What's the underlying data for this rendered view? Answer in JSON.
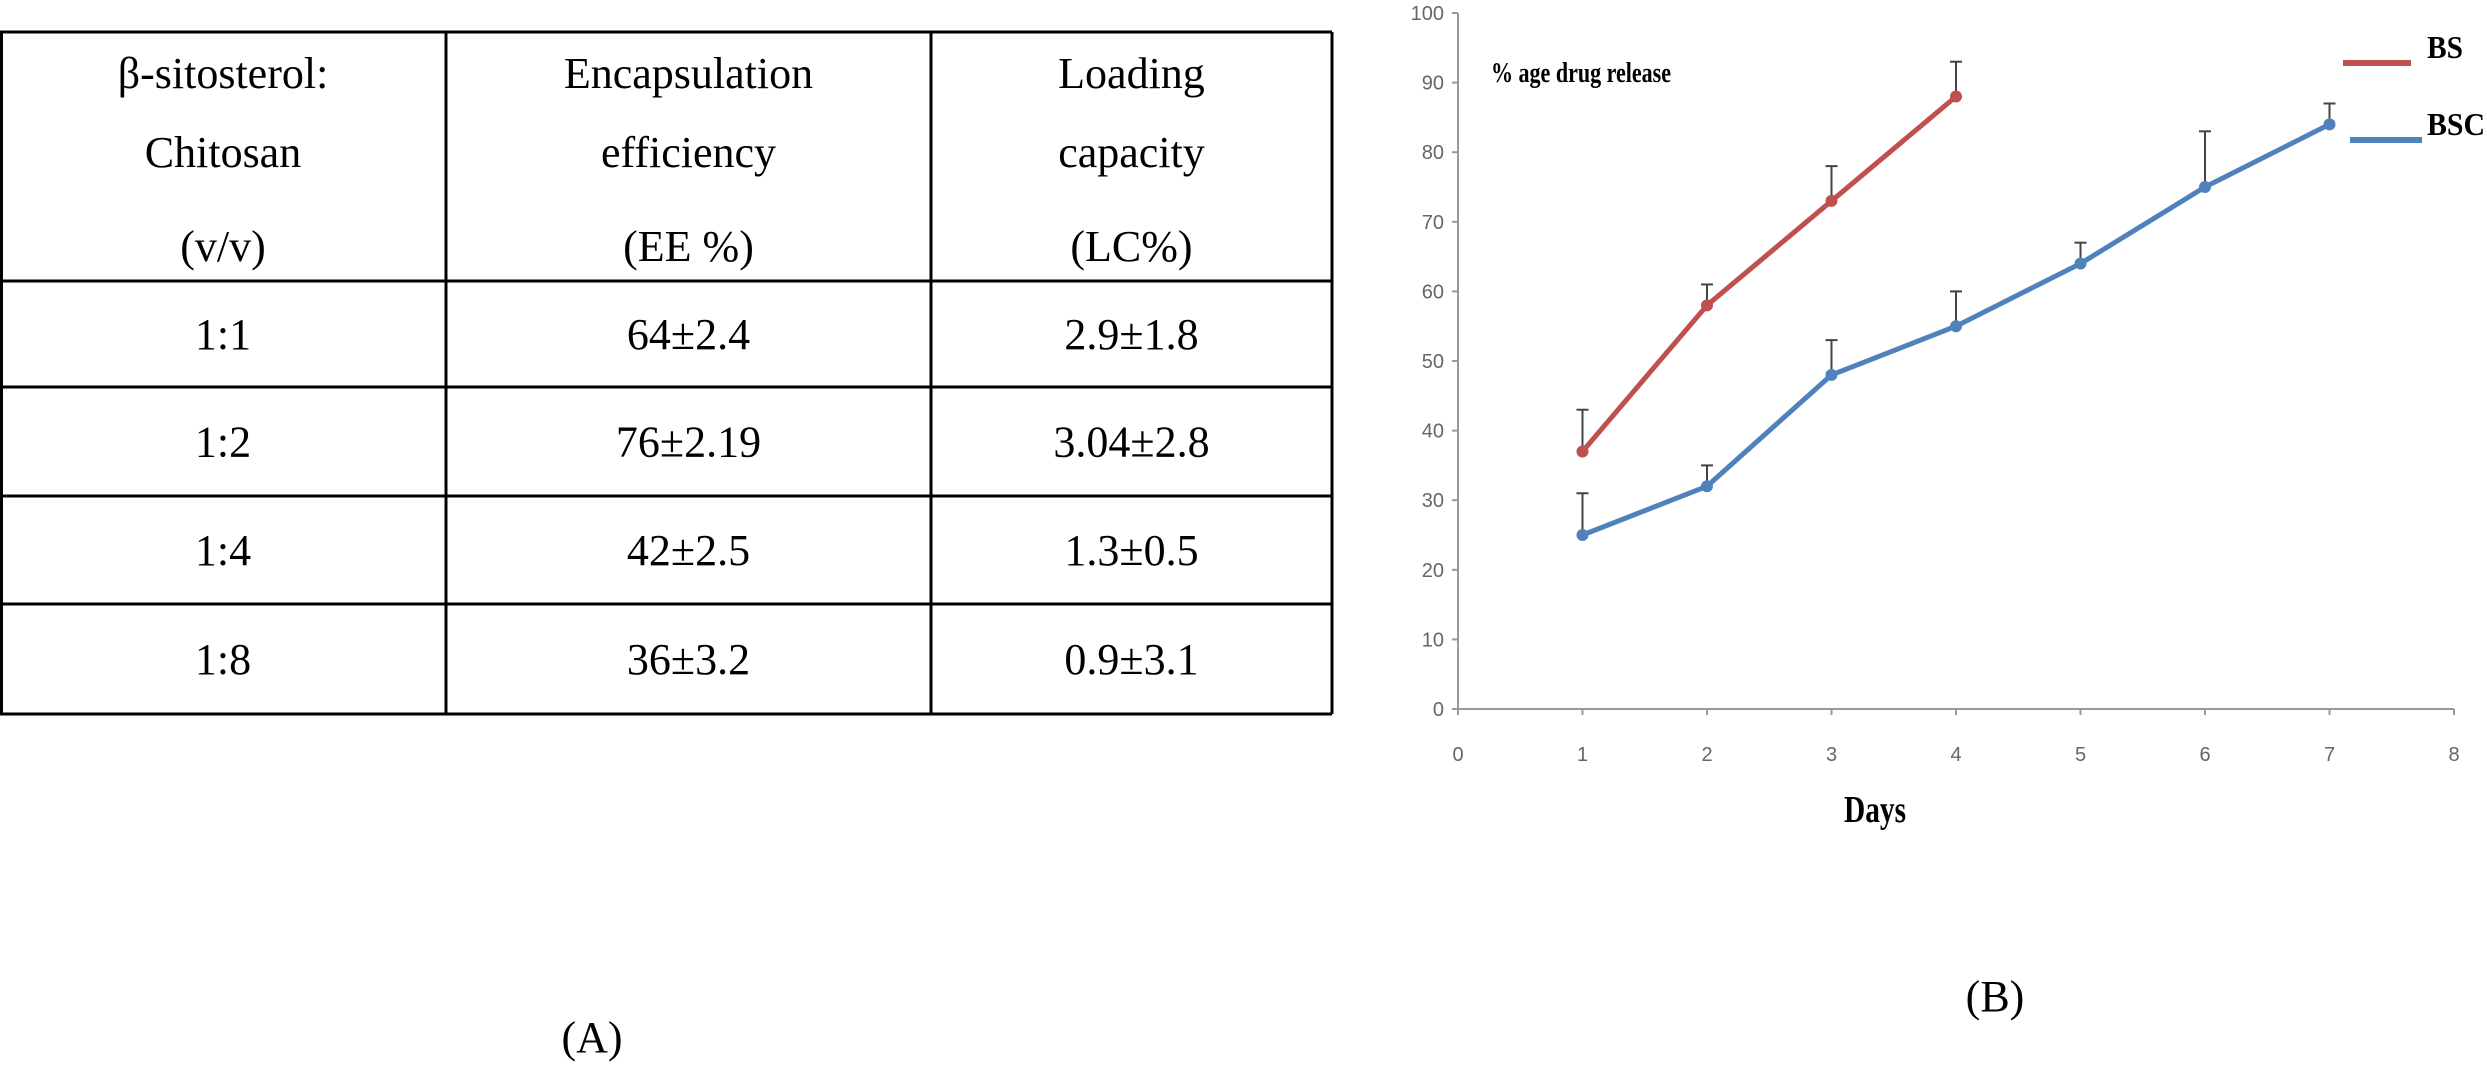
{
  "table": {
    "header": [
      [
        "β-sitosterol:",
        "Chitosan",
        "(v/v)"
      ],
      [
        "Encapsulation",
        "efficiency",
        "(EE %)"
      ],
      [
        "Loading",
        "capacity",
        "(LC%)"
      ]
    ],
    "rows": [
      [
        "1:1",
        "64±2.4",
        "2.9±1.8"
      ],
      [
        "1:2",
        "76±2.19",
        "3.04±2.8"
      ],
      [
        "1:4",
        "42±2.5",
        "1.3±0.5"
      ],
      [
        "1:8",
        "36±3.2",
        "0.9±3.1"
      ]
    ],
    "caption": "(A)"
  },
  "chart_data": {
    "type": "line",
    "caption": "(B)",
    "title": "% age drug release",
    "x_label": "Days",
    "xlim": [
      0,
      8
    ],
    "xticks": [
      0,
      1,
      2,
      3,
      4,
      5,
      6,
      7,
      8
    ],
    "ylim": [
      0,
      100
    ],
    "yticks": [
      0,
      10,
      20,
      30,
      40,
      50,
      60,
      70,
      80,
      90,
      100
    ],
    "series": [
      {
        "name": "BS",
        "color": "#c0504d",
        "x": [
          1,
          2,
          3,
          4
        ],
        "values": [
          37,
          58,
          73,
          88
        ],
        "errors": [
          6,
          3,
          5,
          5
        ]
      },
      {
        "name": "BSC",
        "color": "#4f81bd",
        "x": [
          1,
          2,
          3,
          4,
          5,
          6,
          7
        ],
        "values": [
          25,
          32,
          48,
          55,
          64,
          75,
          84
        ],
        "errors": [
          6,
          3,
          5,
          5,
          3,
          8,
          3
        ]
      }
    ]
  }
}
